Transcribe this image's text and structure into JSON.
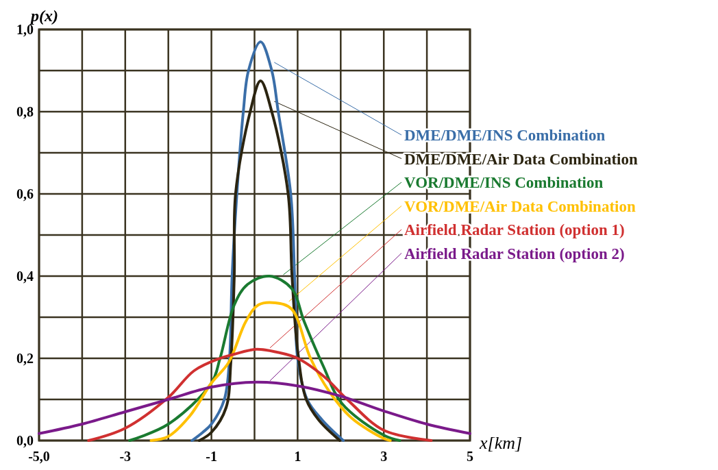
{
  "chart_data": {
    "type": "line",
    "xlabel": "x[km]",
    "ylabel": "p(x)",
    "xlim": [
      -5,
      5
    ],
    "ylim": [
      0,
      1
    ],
    "xticks": [
      {
        "value": -5,
        "label": "-5,0"
      },
      {
        "value": -4,
        "label": null
      },
      -3,
      {
        "value": -2,
        "label": null
      },
      -1,
      {
        "value": 0,
        "label": null
      },
      1,
      {
        "value": 2,
        "label": null
      },
      3,
      {
        "value": 4,
        "label": null
      },
      5
    ],
    "yticks": [
      {
        "value": 0,
        "label": "0,0"
      },
      {
        "value": 0.1,
        "label": null
      },
      {
        "value": 0.2,
        "label": "0,2"
      },
      {
        "value": 0.3,
        "label": null
      },
      {
        "value": 0.4,
        "label": "0,4"
      },
      {
        "value": 0.5,
        "label": null
      },
      {
        "value": 0.6,
        "label": "0,6"
      },
      {
        "value": 0.7,
        "label": null
      },
      {
        "value": 0.8,
        "label": "0,8"
      },
      {
        "value": 0.9,
        "label": null
      },
      {
        "value": 1,
        "label": "1,0"
      }
    ],
    "grid": true,
    "legend": "right",
    "marker": "none",
    "line_style": "solid",
    "series": [
      {
        "name": "DME/DME/INS Combination",
        "color": "#3a6ea8",
        "x": [
          -1.45,
          -1.2,
          -1.0,
          -0.7,
          -0.58,
          -0.52,
          -0.41,
          -0.26,
          -0.14,
          0.14,
          0.4,
          0.55,
          0.84,
          0.93,
          1.0,
          1.22,
          1.57,
          2.06
        ],
        "values": [
          0,
          0.02,
          0.04,
          0.1,
          0.2,
          0.4,
          0.6,
          0.8,
          0.9,
          0.97,
          0.9,
          0.8,
          0.6,
          0.4,
          0.2,
          0.1,
          0.05,
          0
        ]
      },
      {
        "name": "DME/DME/Air Data Combination",
        "color": "#2b2410",
        "x": [
          -1.28,
          -1.0,
          -0.66,
          -0.55,
          -0.47,
          -0.44,
          -0.1,
          0.14,
          0.4,
          0.78,
          0.87,
          1.0,
          1.2,
          1.49,
          1.98
        ],
        "values": [
          0,
          0.02,
          0.08,
          0.19,
          0.4,
          0.6,
          0.8,
          0.875,
          0.8,
          0.6,
          0.4,
          0.22,
          0.1,
          0.05,
          0
        ]
      },
      {
        "name": "VOR/DME/INS Combination",
        "color": "#1a7a30",
        "x": [
          -2.9,
          -2.0,
          -1.0,
          -0.8,
          -0.47,
          -0.16,
          0.35,
          0.86,
          1.15,
          1.6,
          2.03,
          3.0,
          3.37
        ],
        "values": [
          0,
          0.04,
          0.14,
          0.2,
          0.33,
          0.38,
          0.4,
          0.37,
          0.29,
          0.18,
          0.09,
          0.013,
          0
        ]
      },
      {
        "name": "VOR/DME/Air Data Combination",
        "color": "#ffc000",
        "x": [
          -2.4,
          -2.0,
          -1.5,
          -1.0,
          -0.6,
          -0.2,
          0.09,
          0.48,
          0.86,
          1.3,
          1.73,
          2.25,
          3.0,
          3.15
        ],
        "values": [
          0,
          0.01,
          0.06,
          0.14,
          0.19,
          0.29,
          0.33,
          0.335,
          0.32,
          0.2,
          0.12,
          0.055,
          0.005,
          0
        ]
      },
      {
        "name": "Airfield Radar Station (option 1)",
        "color": "#d03030",
        "x": [
          -3.85,
          -3.0,
          -2.0,
          -1.4,
          -0.8,
          -0.47,
          0.04,
          0.52,
          1.0,
          1.62,
          2.15,
          3.0,
          4.1
        ],
        "values": [
          0,
          0.03,
          0.105,
          0.17,
          0.2,
          0.21,
          0.222,
          0.215,
          0.2,
          0.155,
          0.1,
          0.025,
          0
        ]
      },
      {
        "name": "Airfield Radar Station (option 2)",
        "color": "#7a1a8a",
        "x": [
          -5,
          -4,
          -3,
          -2,
          -1,
          0.04,
          1,
          2,
          3,
          4,
          5
        ],
        "values": [
          0.017,
          0.04,
          0.07,
          0.1,
          0.13,
          0.142,
          0.133,
          0.108,
          0.072,
          0.04,
          0.017
        ]
      }
    ]
  }
}
